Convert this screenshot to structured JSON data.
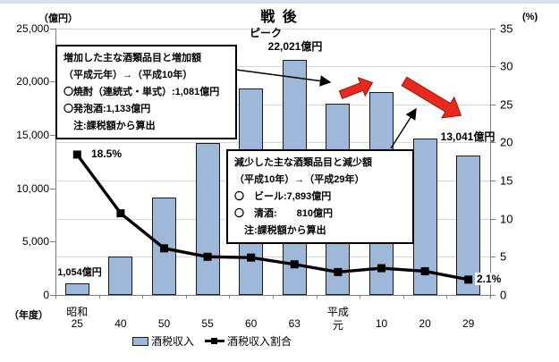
{
  "page": {
    "top_strip_color": "#d5e2f0"
  },
  "chart_data": {
    "type": "combo-bar-line",
    "title": "戦 後",
    "left_axis": {
      "unit": "（億円）",
      "min": 0,
      "max": 25000,
      "ticks": [
        "25,000",
        "20,000",
        "15,000",
        "10,000",
        "5,000",
        "0"
      ]
    },
    "right_axis": {
      "unit": "(%)",
      "min": 0,
      "max": 35,
      "ticks": [
        "35",
        "30",
        "25",
        "20",
        "15",
        "10",
        "5",
        "0"
      ]
    },
    "x_axis": {
      "unit": "（年度）",
      "categories": [
        {
          "era": "昭和",
          "year": "25"
        },
        {
          "year": "40"
        },
        {
          "year": "50"
        },
        {
          "year": "55"
        },
        {
          "year": "60"
        },
        {
          "year": "63"
        },
        {
          "era": "平成",
          "year": "元"
        },
        {
          "year": "10"
        },
        {
          "year": "20"
        },
        {
          "year": "29"
        }
      ]
    },
    "series": [
      {
        "name": "酒税収入",
        "type": "bar",
        "unit": "億円",
        "axis": "left",
        "values": [
          1054,
          3600,
          9150,
          14250,
          19350,
          22021,
          17900,
          19000,
          14650,
          13041
        ]
      },
      {
        "name": "酒税収入割合",
        "type": "line",
        "unit": "%",
        "axis": "right",
        "values": [
          18.5,
          10.8,
          6.2,
          5.1,
          5.0,
          4.1,
          3.1,
          3.6,
          3.2,
          2.1
        ]
      }
    ],
    "grid": "horizontal, every 5% of right axis",
    "legend_position": "bottom"
  },
  "labels": {
    "first_bar": "1,054億円",
    "peak_caption": "ピーク",
    "peak_value": "22,021億円",
    "last_bar": "13,041億円",
    "first_ratio": "18.5%",
    "last_ratio": "2.1%"
  },
  "annotations": {
    "increase": {
      "lines": [
        "増加した主な酒類品目と増加額",
        "（平成元年）→（平成10年）",
        "〇焼酎（連続式・単式）:1,081億円",
        "〇発泡酒:1,133億円",
        "　注:課税額から算出"
      ]
    },
    "decrease": {
      "lines": [
        "減少した主な酒類品目と減少額",
        "（平成10年）→（平成29年）",
        "〇　ビール:7,893億円",
        "〇　清酒:　　810億円",
        "　注:課税額から算出"
      ]
    }
  },
  "legend": {
    "bar_label": "酒税収入",
    "line_label": "酒税収入割合"
  },
  "colors": {
    "bar_fill": "#9fb8d9",
    "bar_border": "#1a1a1a",
    "line": "#000000",
    "gridline": "#d6d6d6",
    "axis": "#7f7f7f",
    "red_arrow": "#e8291d",
    "red_arrow_edge": "#a01408",
    "top_strip": "#d5e2f0"
  }
}
